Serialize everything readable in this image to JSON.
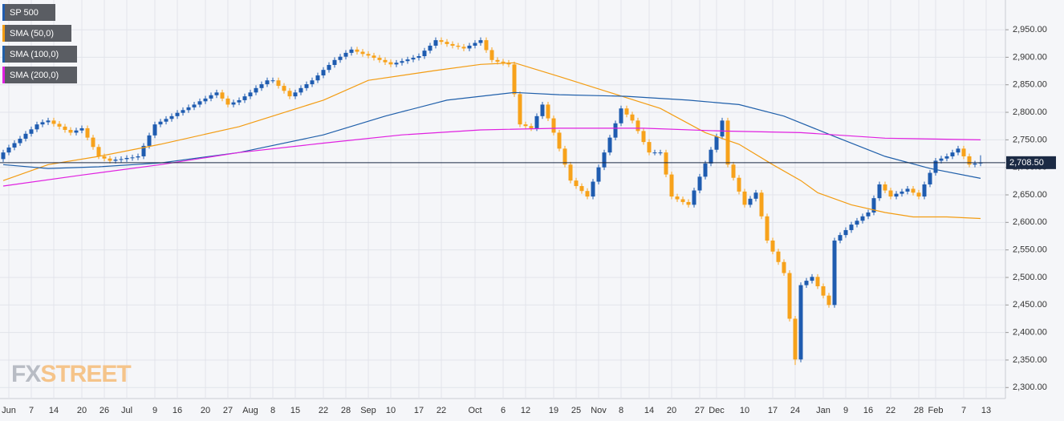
{
  "chart_data": {
    "type": "candlestick",
    "name": "SP 500",
    "up_color": "#1f5cb0",
    "down_color": "#f7a21b",
    "categories": [
      null,
      "Jun",
      null,
      null,
      null,
      "7",
      null,
      null,
      null,
      "14",
      null,
      null,
      null,
      null,
      "20",
      null,
      null,
      null,
      "26",
      null,
      null,
      null,
      "Jul",
      null,
      null,
      null,
      null,
      "9",
      null,
      null,
      null,
      "16",
      null,
      null,
      null,
      null,
      "20",
      null,
      null,
      null,
      "27",
      null,
      null,
      null,
      "Aug",
      null,
      null,
      null,
      "8",
      null,
      null,
      null,
      "15",
      null,
      null,
      null,
      null,
      "22",
      null,
      null,
      null,
      "28",
      null,
      null,
      null,
      "Sep",
      null,
      null,
      null,
      "10",
      null,
      null,
      null,
      null,
      "17",
      null,
      null,
      null,
      "22",
      null,
      null,
      null,
      null,
      null,
      "Oct",
      null,
      null,
      null,
      null,
      "6",
      null,
      null,
      null,
      "12",
      null,
      null,
      null,
      null,
      "19",
      null,
      null,
      null,
      "25",
      null,
      null,
      null,
      "Nov",
      null,
      null,
      null,
      "8",
      null,
      null,
      null,
      null,
      "14",
      null,
      null,
      null,
      "20",
      null,
      null,
      null,
      null,
      "27",
      null,
      null,
      "Dec",
      null,
      null,
      null,
      null,
      "10",
      null,
      null,
      null,
      null,
      "17",
      null,
      null,
      null,
      "24",
      null,
      null,
      null,
      null,
      "Jan",
      null,
      null,
      null,
      "9",
      null,
      null,
      null,
      "16",
      null,
      null,
      null,
      "22",
      null,
      null,
      null,
      null,
      "28",
      null,
      null,
      "Feb",
      null,
      null,
      null,
      null,
      "7",
      null,
      null,
      null,
      "13"
    ],
    "open": [
      2715,
      2727,
      2736,
      2744,
      2752,
      2761,
      2769,
      2778,
      2782,
      2785,
      2779,
      2774,
      2768,
      2763,
      2767,
      2771,
      2754,
      2737,
      2720,
      2716,
      2712,
      2714,
      2715,
      2717,
      2718,
      2720,
      2739,
      2758,
      2778,
      2783,
      2788,
      2793,
      2799,
      2804,
      2809,
      2814,
      2820,
      2825,
      2831,
      2836,
      2825,
      2814,
      2818,
      2822,
      2829,
      2836,
      2844,
      2851,
      2858,
      2858,
      2848,
      2839,
      2829,
      2836,
      2844,
      2851,
      2858,
      2867,
      2877,
      2886,
      2895,
      2901,
      2908,
      2914,
      2910,
      2906,
      2903,
      2899,
      2895,
      2891,
      2887,
      2890,
      2893,
      2896,
      2899,
      2902,
      2912,
      2921,
      2931,
      2928,
      2924,
      2921,
      2919,
      2916,
      2921,
      2926,
      2931,
      2913,
      2895,
      2892,
      2890,
      2887,
      2833,
      2778,
      2775,
      2771,
      2793,
      2814,
      2789,
      2763,
      2734,
      2705,
      2676,
      2666,
      2657,
      2647,
      2674,
      2700,
      2727,
      2754,
      2780,
      2807,
      2796,
      2785,
      2766,
      2746,
      2727,
      2727,
      2727,
      2687,
      2647,
      2642,
      2637,
      2632,
      2658,
      2683,
      2707,
      2732,
      2756,
      2785,
      2705,
      2681,
      2656,
      2632,
      2643,
      2654,
      2611,
      2567,
      2547,
      2528,
      2508,
      2425,
      2351,
      2486,
      2494,
      2501,
      2484,
      2467,
      2450,
      2567,
      2577,
      2586,
      2596,
      2603,
      2611,
      2618,
      2644,
      2669,
      2658,
      2647,
      2652,
      2656,
      2661,
      2654,
      2647,
      2669,
      2690,
      2712,
      2716,
      2720,
      2727,
      2734,
      2720,
      2705,
      2707,
      null
    ],
    "high": [
      2732,
      2741,
      2749,
      2757,
      2766,
      2774,
      2783,
      2787,
      2790,
      2790,
      2784,
      2779,
      2773,
      2772,
      2776,
      2776,
      2759,
      2742,
      2725,
      2721,
      2719,
      2720,
      2722,
      2723,
      2725,
      2744,
      2763,
      2783,
      2788,
      2793,
      2798,
      2804,
      2809,
      2814,
      2819,
      2825,
      2830,
      2836,
      2841,
      2841,
      2830,
      2823,
      2827,
      2834,
      2841,
      2849,
      2856,
      2863,
      2863,
      2863,
      2853,
      2844,
      2841,
      2849,
      2856,
      2863,
      2872,
      2882,
      2891,
      2900,
      2906,
      2913,
      2919,
      2919,
      2915,
      2911,
      2908,
      2904,
      2900,
      2896,
      2895,
      2898,
      2901,
      2904,
      2907,
      2917,
      2926,
      2936,
      2936,
      2933,
      2929,
      2926,
      2924,
      2926,
      2931,
      2936,
      2936,
      2918,
      2900,
      2897,
      2895,
      2892,
      2838,
      2783,
      2780,
      2798,
      2819,
      2819,
      2794,
      2768,
      2739,
      2710,
      2681,
      2671,
      2662,
      2679,
      2705,
      2732,
      2759,
      2785,
      2812,
      2812,
      2801,
      2790,
      2771,
      2751,
      2732,
      2732,
      2732,
      2692,
      2652,
      2647,
      2642,
      2663,
      2688,
      2712,
      2737,
      2761,
      2790,
      2790,
      2710,
      2686,
      2661,
      2648,
      2659,
      2659,
      2616,
      2572,
      2552,
      2533,
      2513,
      2430,
      2491,
      2499,
      2506,
      2506,
      2489,
      2472,
      2572,
      2582,
      2591,
      2601,
      2608,
      2616,
      2623,
      2649,
      2674,
      2674,
      2663,
      2657,
      2661,
      2666,
      2666,
      2659,
      2674,
      2695,
      2717,
      2721,
      2725,
      2732,
      2739,
      2739,
      2725,
      2712,
      2722,
      null
    ],
    "low": [
      2710,
      2722,
      2731,
      2739,
      2747,
      2756,
      2764,
      2773,
      2777,
      2774,
      2769,
      2763,
      2758,
      2758,
      2762,
      2749,
      2732,
      2715,
      2711,
      2707,
      2707,
      2709,
      2710,
      2712,
      2713,
      2715,
      2734,
      2753,
      2773,
      2778,
      2783,
      2788,
      2794,
      2799,
      2804,
      2809,
      2815,
      2820,
      2826,
      2820,
      2809,
      2809,
      2813,
      2817,
      2824,
      2831,
      2839,
      2846,
      2853,
      2843,
      2834,
      2824,
      2824,
      2831,
      2839,
      2846,
      2853,
      2862,
      2872,
      2881,
      2890,
      2896,
      2903,
      2905,
      2901,
      2898,
      2894,
      2890,
      2886,
      2882,
      2882,
      2885,
      2888,
      2891,
      2894,
      2897,
      2907,
      2916,
      2923,
      2919,
      2916,
      2914,
      2911,
      2911,
      2916,
      2921,
      2908,
      2890,
      2887,
      2885,
      2882,
      2828,
      2773,
      2770,
      2766,
      2766,
      2788,
      2784,
      2758,
      2729,
      2700,
      2671,
      2661,
      2652,
      2642,
      2642,
      2669,
      2695,
      2722,
      2749,
      2775,
      2791,
      2780,
      2761,
      2741,
      2722,
      2722,
      2722,
      2682,
      2642,
      2637,
      2632,
      2627,
      2627,
      2653,
      2678,
      2702,
      2727,
      2751,
      2700,
      2676,
      2651,
      2627,
      2627,
      2638,
      2606,
      2562,
      2542,
      2523,
      2503,
      2420,
      2341,
      2346,
      2481,
      2489,
      2479,
      2462,
      2445,
      2445,
      2562,
      2572,
      2581,
      2591,
      2598,
      2606,
      2613,
      2639,
      2653,
      2642,
      2642,
      2647,
      2651,
      2649,
      2642,
      2642,
      2664,
      2685,
      2707,
      2711,
      2715,
      2722,
      2715,
      2700,
      2700,
      2702,
      null
    ],
    "close": [
      2727,
      2736,
      2744,
      2752,
      2761,
      2769,
      2778,
      2782,
      2785,
      2779,
      2774,
      2768,
      2763,
      2767,
      2771,
      2754,
      2737,
      2720,
      2716,
      2712,
      2714,
      2715,
      2717,
      2718,
      2720,
      2739,
      2758,
      2778,
      2783,
      2788,
      2793,
      2799,
      2804,
      2809,
      2814,
      2820,
      2825,
      2831,
      2836,
      2825,
      2814,
      2818,
      2822,
      2829,
      2836,
      2844,
      2851,
      2858,
      2858,
      2848,
      2839,
      2829,
      2836,
      2844,
      2851,
      2858,
      2867,
      2877,
      2886,
      2895,
      2901,
      2908,
      2914,
      2910,
      2906,
      2903,
      2899,
      2895,
      2891,
      2887,
      2890,
      2893,
      2896,
      2899,
      2902,
      2912,
      2921,
      2931,
      2928,
      2924,
      2921,
      2919,
      2916,
      2921,
      2926,
      2931,
      2913,
      2895,
      2892,
      2890,
      2887,
      2833,
      2778,
      2775,
      2771,
      2793,
      2814,
      2789,
      2763,
      2734,
      2705,
      2676,
      2666,
      2657,
      2647,
      2674,
      2700,
      2727,
      2754,
      2780,
      2807,
      2796,
      2785,
      2766,
      2746,
      2727,
      2727,
      2727,
      2687,
      2647,
      2642,
      2637,
      2632,
      2658,
      2683,
      2707,
      2732,
      2756,
      2785,
      2705,
      2681,
      2656,
      2632,
      2643,
      2654,
      2611,
      2567,
      2547,
      2528,
      2508,
      2425,
      2351,
      2486,
      2494,
      2501,
      2484,
      2467,
      2450,
      2567,
      2577,
      2586,
      2596,
      2603,
      2611,
      2618,
      2644,
      2669,
      2658,
      2647,
      2652,
      2656,
      2661,
      2654,
      2647,
      2669,
      2690,
      2712,
      2716,
      2720,
      2727,
      2734,
      2720,
      2705,
      2707,
      2708.5,
      null
    ],
    "lines": [
      {
        "name": "SMA (50,0)",
        "color": "#f39c12",
        "x": [
          0,
          8,
          17,
          28,
          42,
          57,
          65,
          77,
          85,
          91,
          99,
          108,
          117,
          125,
          131,
          137,
          142,
          145,
          151,
          157,
          162,
          168,
          174
        ],
        "values": [
          2676,
          2705,
          2720,
          2742,
          2774,
          2822,
          2858,
          2876,
          2887,
          2890,
          2865,
          2836,
          2807,
          2763,
          2742,
          2705,
          2676,
          2654,
          2632,
          2618,
          2610,
          2610,
          2607
        ]
      },
      {
        "name": "SMA (100,0)",
        "color": "#1f5faa",
        "x": [
          0,
          8,
          17,
          28,
          42,
          57,
          68,
          79,
          91,
          99,
          111,
          122,
          131,
          139,
          148,
          157,
          165,
          174
        ],
        "values": [
          2705,
          2698,
          2701,
          2708,
          2727,
          2759,
          2793,
          2822,
          2836,
          2832,
          2829,
          2822,
          2814,
          2793,
          2756,
          2720,
          2698,
          2680
        ]
      },
      {
        "name": "SMA (200,0)",
        "color": "#e020e0",
        "x": [
          0,
          14,
          28,
          42,
          57,
          71,
          85,
          99,
          114,
          128,
          142,
          157,
          174
        ],
        "values": [
          2666,
          2686,
          2705,
          2727,
          2744,
          2759,
          2768,
          2771,
          2771,
          2766,
          2763,
          2753,
          2750
        ]
      }
    ],
    "last_price": 2708.5,
    "last_price_label": "2,708.50",
    "ylim": [
      2280,
      3004
    ],
    "yticks": [
      {
        "value": 2300,
        "label": "2,300.00"
      },
      {
        "value": 2350,
        "label": "2,350.00"
      },
      {
        "value": 2400,
        "label": "2,400.00"
      },
      {
        "value": 2450,
        "label": "2,450.00"
      },
      {
        "value": 2500,
        "label": "2,500.00"
      },
      {
        "value": 2550,
        "label": "2,550.00"
      },
      {
        "value": 2600,
        "label": "2,600.00"
      },
      {
        "value": 2650,
        "label": "2,650.00"
      },
      {
        "value": 2700,
        "label": "2,700.00"
      },
      {
        "value": 2750,
        "label": "2,750.00"
      },
      {
        "value": 2800,
        "label": "2,800.00"
      },
      {
        "value": 2850,
        "label": "2,850.00"
      },
      {
        "value": 2900,
        "label": "2,900.00"
      },
      {
        "value": 2950,
        "label": "2,950.00"
      }
    ],
    "grid": true,
    "legend": "top-left"
  },
  "watermark": {
    "brand": [
      "FX",
      "STREET"
    ]
  }
}
